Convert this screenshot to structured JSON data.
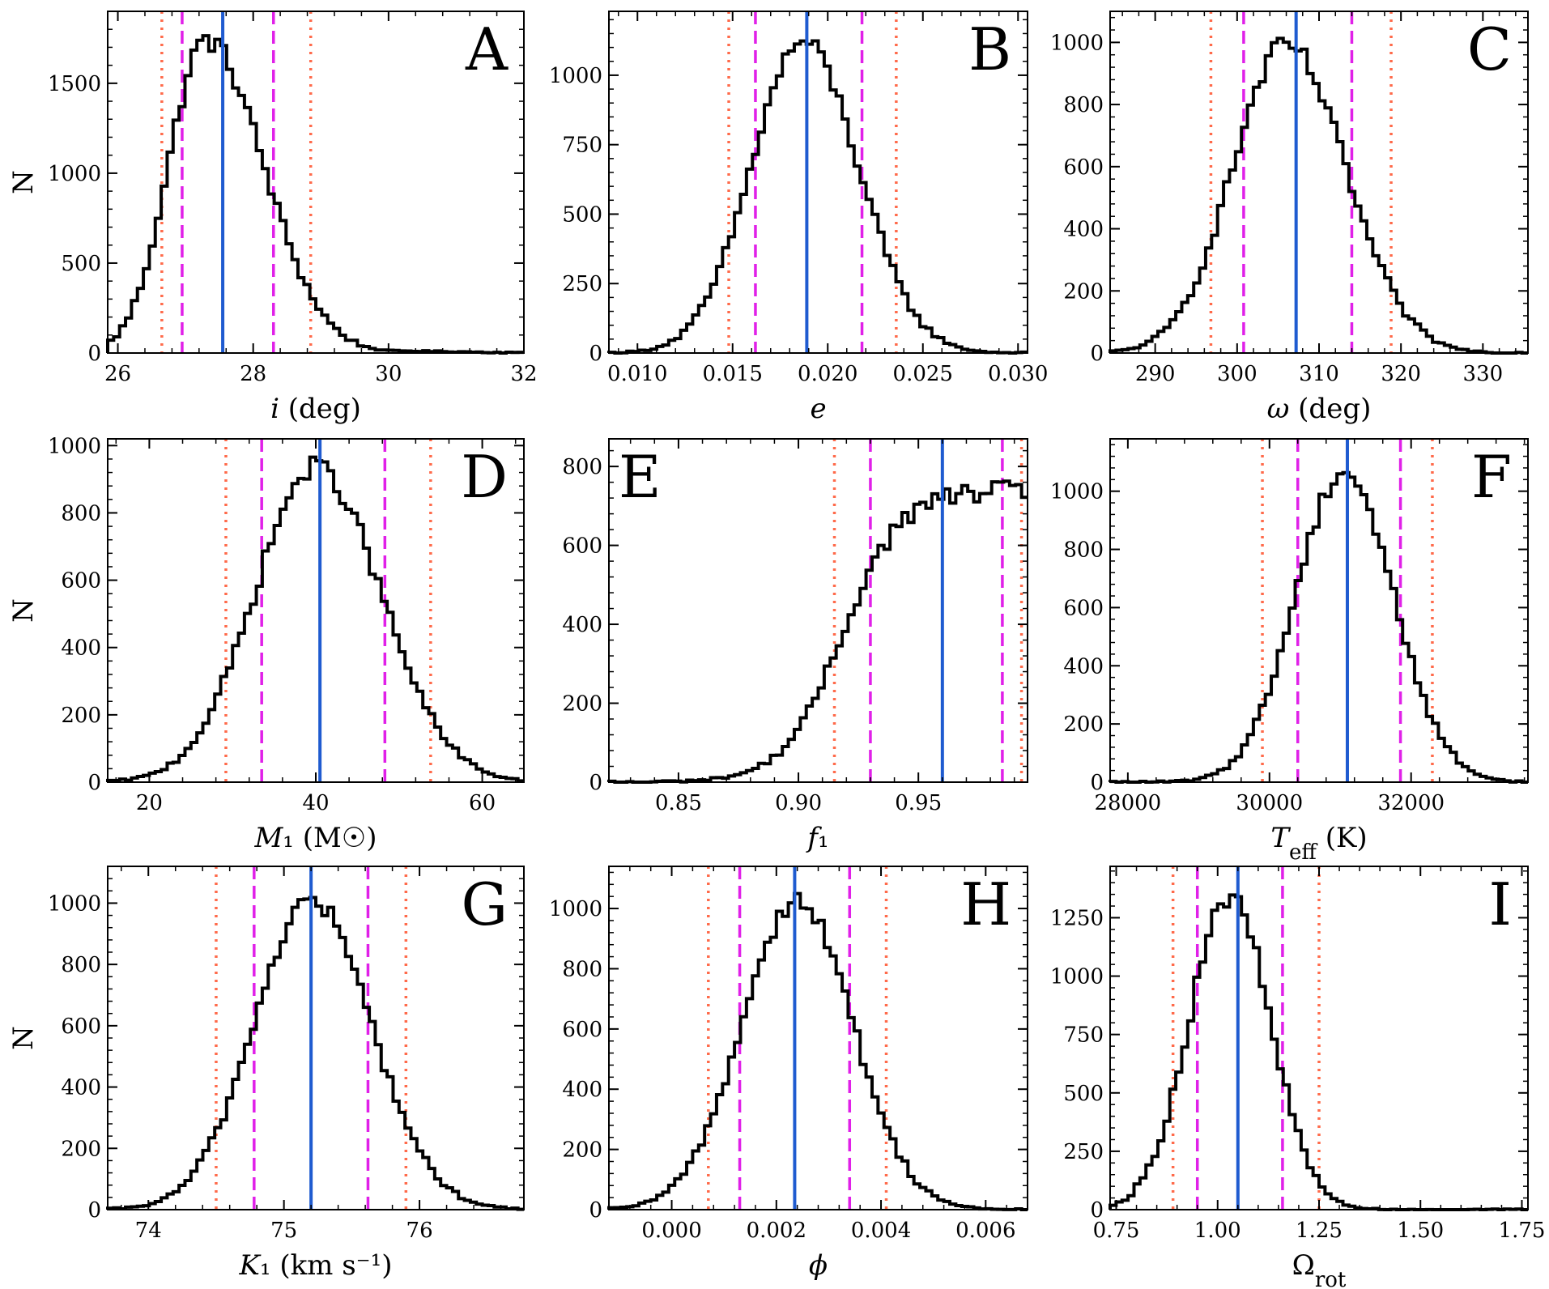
{
  "figure": {
    "colors": {
      "histogram": "#000000",
      "median": "#1f5bd0",
      "one_sigma": "#e020e8",
      "two_sigma": "#ff6a4a"
    },
    "line_styles": {
      "median": "solid",
      "one_sigma": "dashed",
      "two_sigma": "dotted"
    }
  },
  "chart_data": [
    {
      "type": "histogram",
      "letter": "A",
      "ylabel": "N",
      "xlabel": "i (deg)",
      "xlim": [
        25.85,
        32.0
      ],
      "ylim": [
        0,
        1900
      ],
      "xticks": [
        26,
        28,
        30,
        32
      ],
      "xtick_labels": [
        "26",
        "28",
        "30",
        "32"
      ],
      "yticks": [
        0,
        500,
        1000,
        1500
      ],
      "ytick_labels": [
        "0",
        "500",
        "1000",
        "1500"
      ],
      "peak": 27.3,
      "spread_left": 0.55,
      "spread_right": 0.85,
      "peak_value": 1740,
      "median": 27.55,
      "one_sigma": [
        26.95,
        28.3
      ],
      "two_sigma": [
        26.65,
        28.85
      ]
    },
    {
      "type": "histogram",
      "letter": "B",
      "ylabel": "",
      "xlabel": "e",
      "xlim": [
        0.0085,
        0.0305
      ],
      "ylim": [
        0,
        1230
      ],
      "xticks": [
        0.01,
        0.015,
        0.02,
        0.025,
        0.03
      ],
      "xtick_labels": [
        "0.010",
        "0.015",
        "0.020",
        "0.025",
        "0.030"
      ],
      "yticks": [
        0,
        250,
        500,
        750,
        1000
      ],
      "ytick_labels": [
        "0",
        "250",
        "500",
        "750",
        "1000"
      ],
      "peak": 0.0187,
      "spread_left": 0.0027,
      "spread_right": 0.0029,
      "peak_value": 1120,
      "median": 0.0189,
      "one_sigma": [
        0.0162,
        0.0218
      ],
      "two_sigma": [
        0.0148,
        0.0236
      ]
    },
    {
      "type": "histogram",
      "letter": "C",
      "ylabel": "",
      "xlabel": "ω (deg)",
      "xlim": [
        284.5,
        335.5
      ],
      "ylim": [
        0,
        1100
      ],
      "xticks": [
        290,
        300,
        310,
        320,
        330
      ],
      "xtick_labels": [
        "290",
        "300",
        "310",
        "320",
        "330"
      ],
      "yticks": [
        0,
        200,
        400,
        600,
        800,
        1000
      ],
      "ytick_labels": [
        "0",
        "200",
        "400",
        "600",
        "800",
        "1000"
      ],
      "peak": 306.0,
      "spread_left": 6.5,
      "spread_right": 7.2,
      "peak_value": 990,
      "median": 307.2,
      "one_sigma": [
        300.8,
        314.0
      ],
      "two_sigma": [
        296.8,
        318.8
      ]
    },
    {
      "type": "histogram",
      "letter": "D",
      "ylabel": "N",
      "xlabel": "M₁ (M☉)",
      "xlim": [
        15.0,
        65.0
      ],
      "ylim": [
        0,
        1020
      ],
      "xticks": [
        20,
        40,
        60
      ],
      "xtick_labels": [
        "20",
        "40",
        "60"
      ],
      "yticks": [
        0,
        200,
        400,
        600,
        800,
        1000
      ],
      "ytick_labels": [
        "0",
        "200",
        "400",
        "600",
        "800",
        "1000"
      ],
      "peak": 40.0,
      "spread_left": 7.3,
      "spread_right": 7.8,
      "peak_value": 935,
      "median": 40.5,
      "one_sigma": [
        33.5,
        48.3
      ],
      "two_sigma": [
        29.2,
        53.8
      ]
    },
    {
      "type": "histogram",
      "letter": "E",
      "ylabel": "",
      "xlabel": "f₁",
      "xlim": [
        0.821,
        0.9955
      ],
      "ylim": [
        0,
        870
      ],
      "xticks": [
        0.85,
        0.9,
        0.95
      ],
      "xtick_labels": [
        "0.85",
        "0.90",
        "0.95"
      ],
      "yticks": [
        0,
        200,
        400,
        600,
        800
      ],
      "ytick_labels": [
        "0",
        "200",
        "400",
        "600",
        "800"
      ],
      "shape": "rising",
      "peak": 0.945,
      "spread_left": 0.02,
      "peak_value": 740,
      "median": 0.96,
      "one_sigma": [
        0.93,
        0.985
      ],
      "two_sigma": [
        0.915,
        0.993
      ]
    },
    {
      "type": "histogram",
      "letter": "F",
      "ylabel": "",
      "xlabel": "T_eff (K)",
      "xlim": [
        27750,
        33650
      ],
      "ylim": [
        0,
        1180
      ],
      "xticks": [
        28000,
        30000,
        32000
      ],
      "xtick_labels": [
        "28000",
        "30000",
        "32000"
      ],
      "yticks": [
        0,
        200,
        400,
        600,
        800,
        1000
      ],
      "ytick_labels": [
        "0",
        "200",
        "400",
        "600",
        "800",
        "1000"
      ],
      "peak": 31050,
      "spread_left": 680,
      "spread_right": 700,
      "peak_value": 1070,
      "median": 31100,
      "one_sigma": [
        30400,
        31850
      ],
      "two_sigma": [
        29900,
        32300
      ]
    },
    {
      "type": "histogram",
      "letter": "G",
      "ylabel": "N",
      "xlabel": "K₁ (km s⁻¹)",
      "xlim": [
        73.7,
        76.77
      ],
      "ylim": [
        0,
        1120
      ],
      "xticks": [
        74,
        75,
        76
      ],
      "xtick_labels": [
        "74",
        "75",
        "76"
      ],
      "yticks": [
        0,
        200,
        400,
        600,
        800,
        1000
      ],
      "ytick_labels": [
        "0",
        "200",
        "400",
        "600",
        "800",
        "1000"
      ],
      "peak": 75.2,
      "spread_left": 0.42,
      "spread_right": 0.44,
      "peak_value": 1010,
      "median": 75.2,
      "one_sigma": [
        74.78,
        75.62
      ],
      "two_sigma": [
        74.5,
        75.9
      ]
    },
    {
      "type": "histogram",
      "letter": "H",
      "ylabel": "",
      "xlabel": "ϕ",
      "xlim": [
        -0.0012,
        0.0068
      ],
      "ylim": [
        0,
        1140
      ],
      "xticks": [
        0.0,
        0.002,
        0.004,
        0.006
      ],
      "xtick_labels": [
        "0.000",
        "0.002",
        "0.004",
        "0.006"
      ],
      "yticks": [
        0,
        200,
        400,
        600,
        800,
        1000
      ],
      "ytick_labels": [
        "0",
        "200",
        "400",
        "600",
        "800",
        "1000"
      ],
      "peak": 0.0024,
      "spread_left": 0.00105,
      "spread_right": 0.00105,
      "peak_value": 1030,
      "median": 0.00235,
      "one_sigma": [
        0.0013,
        0.0034
      ],
      "two_sigma": [
        0.0007,
        0.0041
      ]
    },
    {
      "type": "histogram",
      "letter": "I",
      "ylabel": "",
      "xlabel": "Ω_rot",
      "xlim": [
        0.735,
        1.765
      ],
      "ylim": [
        0,
        1470
      ],
      "xticks": [
        0.75,
        1.0,
        1.25,
        1.5,
        1.75
      ],
      "xtick_labels": [
        "0.75",
        "1.00",
        "1.25",
        "1.50",
        "1.75"
      ],
      "yticks": [
        0,
        250,
        500,
        750,
        1000,
        1250
      ],
      "ytick_labels": [
        "0",
        "250",
        "500",
        "750",
        "1000",
        "1250"
      ],
      "peak": 1.03,
      "spread_left": 0.1,
      "spread_right": 0.1,
      "peak_value": 1340,
      "median": 1.05,
      "one_sigma": [
        0.95,
        1.16
      ],
      "two_sigma": [
        0.89,
        1.25
      ]
    }
  ]
}
